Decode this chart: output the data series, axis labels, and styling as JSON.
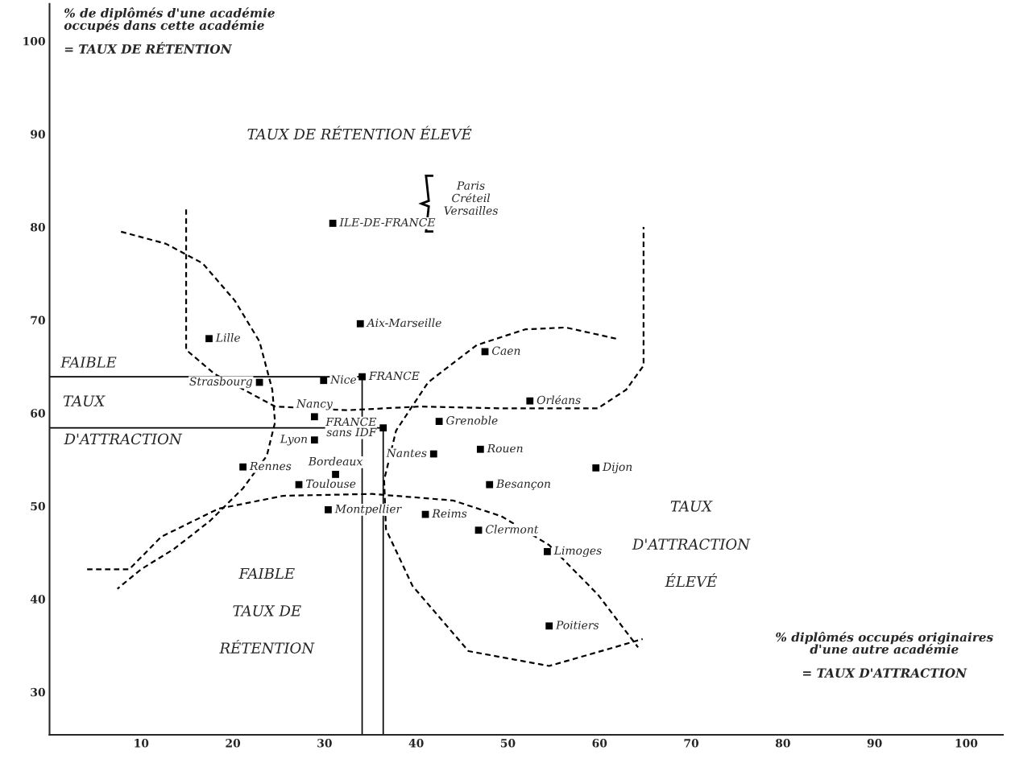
{
  "chart_data": {
    "type": "scatter",
    "xlabel": "% diplômés occupés originaires\nd'une autre académie\n\n= TAUX D'ATTRACTION",
    "ylabel": "% de diplômés d'une académie\noccupés dans cette académie\n\n= TAUX DE RÉTENTION",
    "xlim": [
      0,
      104
    ],
    "ylim": [
      25.4,
      104
    ],
    "xticks": [
      10,
      20,
      30,
      40,
      50,
      60,
      70,
      80,
      90,
      100
    ],
    "yticks": [
      30,
      40,
      50,
      60,
      70,
      80,
      90,
      100
    ],
    "grid": false,
    "legend": false,
    "ref_lines": [
      {
        "axis": "y",
        "value": 63.9,
        "color": "#000000"
      },
      {
        "axis": "x",
        "value": 34.1,
        "color": "#000000"
      },
      {
        "axis": "y",
        "value": 58.4,
        "color": "#000000"
      },
      {
        "axis": "x",
        "value": 36.4,
        "color": "#000000"
      }
    ],
    "annotations": [
      "TAUX DE RÉTENTION ÉLEVÉ",
      "Paris\nCréteil\nVersailles",
      "FAIBLE",
      "TAUX",
      "D'ATTRACTION",
      "FAIBLE",
      "TAUX DE",
      "RÉTENTION",
      "TAUX",
      "D'ATTRACTION",
      "ÉLEVÉ"
    ],
    "series": [
      {
        "color": "#000000",
        "marker": "square",
        "x": [
          30.9,
          33.9,
          17.4,
          34.1,
          22.9,
          29.9,
          47.5,
          52.4,
          36.4,
          28.9,
          42.5,
          28.9,
          41.9,
          47.0,
          59.6,
          21.1,
          31.2,
          48.0,
          27.2,
          30.4,
          41.0,
          46.8,
          54.3,
          54.5
        ],
        "values": [
          80.4,
          69.6,
          68.0,
          63.9,
          63.3,
          63.5,
          66.6,
          61.3,
          58.4,
          59.6,
          59.1,
          57.1,
          55.6,
          56.1,
          54.1,
          54.2,
          53.4,
          52.3,
          52.3,
          49.6,
          49.1,
          47.4,
          45.1,
          37.1
        ],
        "value_labels": [
          "ILE-DE-FRANCE",
          "Aix-Marseille",
          "Lille",
          "FRANCE",
          "Strasbourg",
          "Nice",
          "Caen",
          "Orléans",
          "FRANCE\nsans IDF",
          "Nancy",
          "Grenoble",
          "Lyon",
          "Nantes",
          "Rouen",
          "Dijon",
          "Rennes",
          "Bordeaux",
          "Besançon",
          "Toulouse",
          "Montpellier",
          "Reims",
          "Clermont",
          "Limoges",
          "Poitiers"
        ]
      },
      {
        "type": "line",
        "line_style": "dashed",
        "color": "#000000",
        "x": [
          7.8,
          12.7,
          16.7,
          20.2,
          22.9,
          24.3,
          24.6,
          23.7,
          21.1,
          17.5,
          13.6,
          10.0,
          7.4
        ],
        "values": [
          79.5,
          78.2,
          76.1,
          72.1,
          67.7,
          62.5,
          59.0,
          55.4,
          51.9,
          48.4,
          45.4,
          43.2,
          41.1
        ]
      },
      {
        "type": "line",
        "line_style": "dashed",
        "color": "#000000",
        "x": [
          14.9,
          14.9,
          18.0,
          24.6,
          32.5,
          40.4,
          49.2,
          59.8,
          62.9,
          64.8,
          64.8
        ],
        "values": [
          81.9,
          66.8,
          64.2,
          60.7,
          60.3,
          60.7,
          60.5,
          60.5,
          62.5,
          65.1,
          80.0
        ]
      },
      {
        "type": "line",
        "line_style": "dashed",
        "color": "#000000",
        "x": [
          4.1,
          8.7,
          12.2,
          18.4,
          25.5,
          35.2,
          44.0,
          49.3,
          54.5,
          59.8,
          64.2
        ],
        "values": [
          43.2,
          43.2,
          46.7,
          49.7,
          51.1,
          51.3,
          50.6,
          48.9,
          45.8,
          40.5,
          34.8
        ]
      },
      {
        "type": "line",
        "line_style": "dashed",
        "color": "#000000",
        "x": [
          61.8,
          56.3,
          51.9,
          46.6,
          41.3,
          37.8,
          36.5,
          36.7,
          39.6,
          45.7,
          54.5,
          61.6,
          64.7
        ],
        "values": [
          68.0,
          69.2,
          69.0,
          67.3,
          63.3,
          58.1,
          52.8,
          47.5,
          41.4,
          34.4,
          32.8,
          34.8,
          35.7
        ]
      }
    ]
  }
}
